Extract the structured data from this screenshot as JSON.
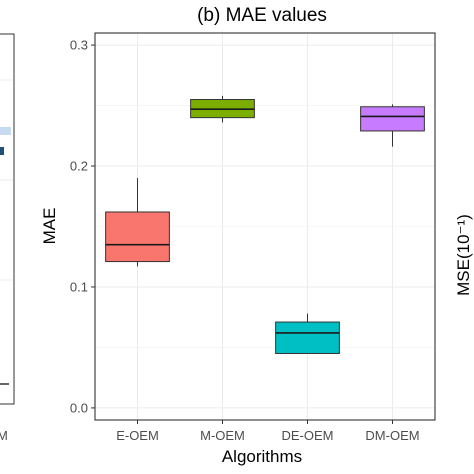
{
  "chart_data": {
    "type": "box",
    "title": "(b) MAE values",
    "xlabel": "Algorithms",
    "ylabel": "MAE",
    "ylim": [
      -0.01,
      0.31
    ],
    "yticks": [
      "0.0",
      "0.1",
      "0.2",
      "0.3"
    ],
    "categories": [
      "E-OEM",
      "M-OEM",
      "DE-OEM",
      "DM-OEM"
    ],
    "boxes": [
      {
        "name": "E-OEM",
        "min": 0.117,
        "q1": 0.121,
        "median": 0.135,
        "q3": 0.162,
        "max": 0.19,
        "color": "#f8766d"
      },
      {
        "name": "M-OEM",
        "min": 0.236,
        "q1": 0.24,
        "median": 0.247,
        "q3": 0.255,
        "max": 0.258,
        "color": "#7cae00"
      },
      {
        "name": "DE-OEM",
        "min": 0.045,
        "q1": 0.045,
        "median": 0.062,
        "q3": 0.071,
        "max": 0.078,
        "color": "#00bfc4"
      },
      {
        "name": "DM-OEM",
        "min": 0.216,
        "q1": 0.229,
        "median": 0.241,
        "q3": 0.249,
        "max": 0.251,
        "color": "#c77cff"
      }
    ],
    "grid": true
  },
  "left_panel": {
    "x_tick_fragment": "M",
    "bar_color": "#1f4e79",
    "highlight_color": "#c6dbef"
  },
  "right_panel": {
    "ylabel": "MSE(10⁻¹)"
  }
}
